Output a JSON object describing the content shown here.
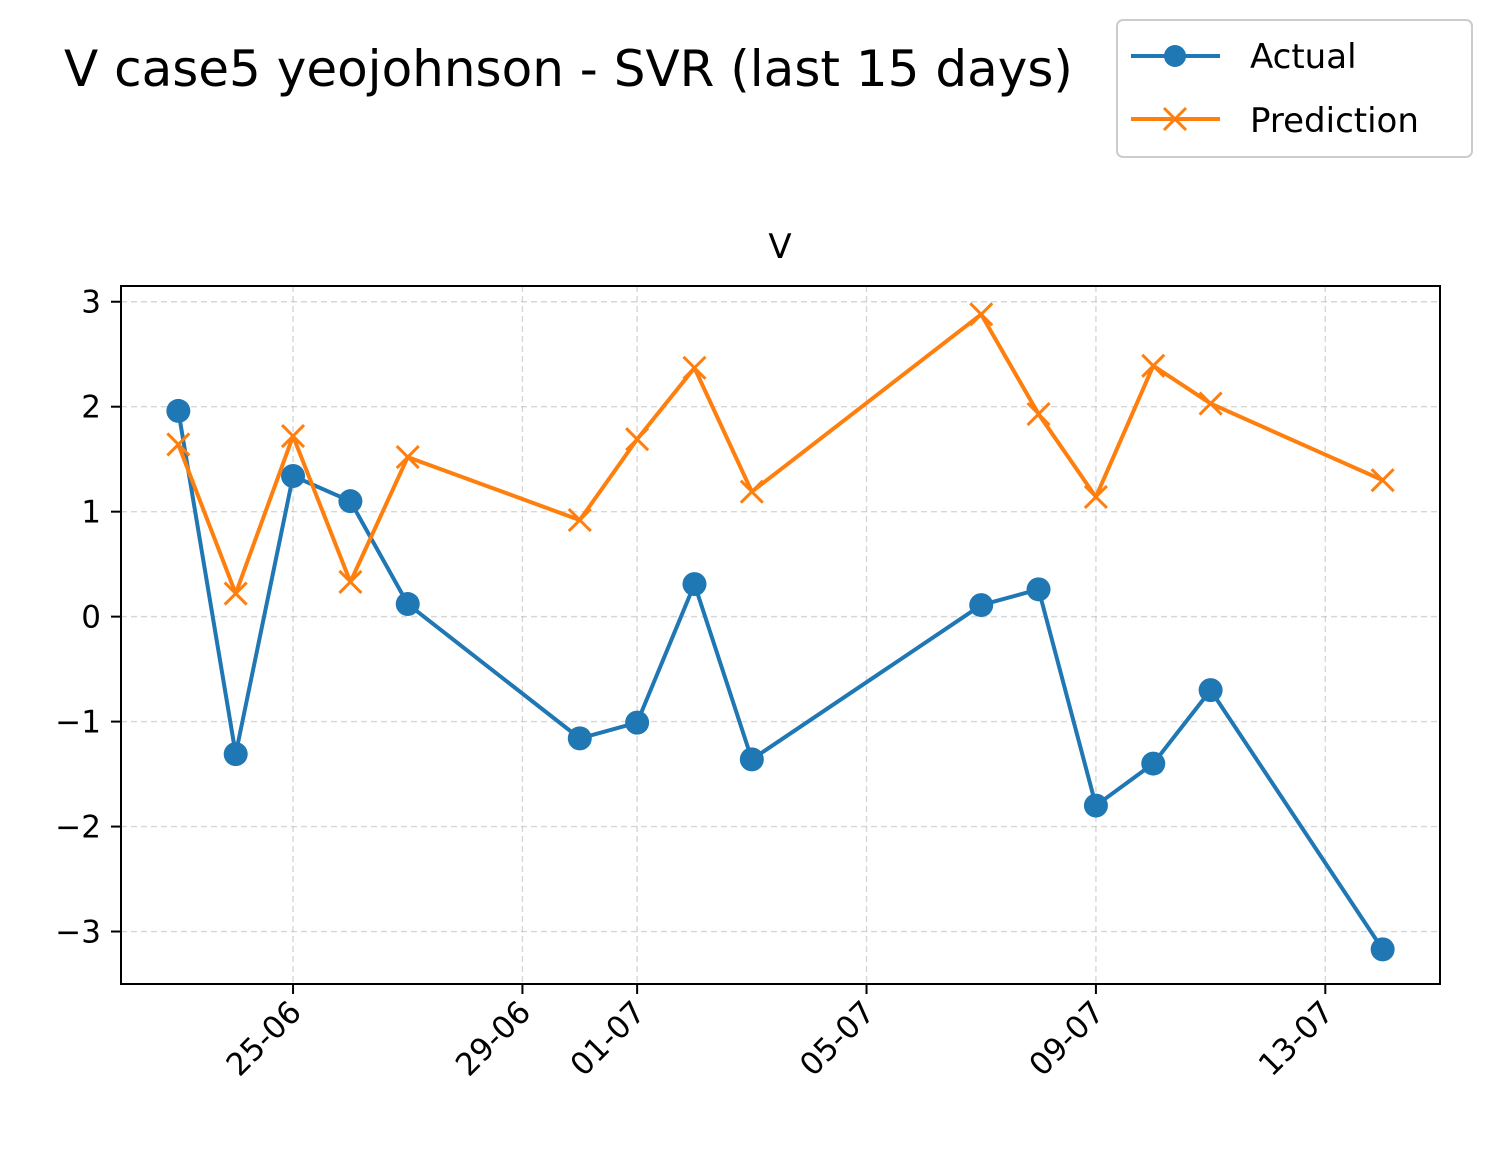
{
  "figure": {
    "suptitle": "V case5 yeojohnson - SVR (last 15 days)"
  },
  "legend": {
    "placement": "top-right",
    "entries": [
      {
        "label": "Actual",
        "color": "#1f77b4",
        "marker": "circle"
      },
      {
        "label": "Prediction",
        "color": "#ff7f0e",
        "marker": "x"
      }
    ]
  },
  "chart_data": {
    "type": "line",
    "title": "V",
    "xlabel": "",
    "ylabel": "",
    "x_type": "date",
    "x": [
      "2025-06-23",
      "2025-06-24",
      "2025-06-25",
      "2025-06-26",
      "2025-06-27",
      "2025-06-30",
      "2025-07-01",
      "2025-07-02",
      "2025-07-03",
      "2025-07-07",
      "2025-07-08",
      "2025-07-09",
      "2025-07-10",
      "2025-07-11",
      "2025-07-14"
    ],
    "xlim": [
      "2025-06-22T00:00",
      "2025-07-15T00:00"
    ],
    "ylim": [
      -3.5,
      3.15
    ],
    "x_ticks": [
      {
        "date": "2025-06-25",
        "label": "25-06"
      },
      {
        "date": "2025-06-29",
        "label": "29-06"
      },
      {
        "date": "2025-07-01",
        "label": "01-07"
      },
      {
        "date": "2025-07-05",
        "label": "05-07"
      },
      {
        "date": "2025-07-09",
        "label": "09-07"
      },
      {
        "date": "2025-07-13",
        "label": "13-07"
      }
    ],
    "y_ticks": [
      {
        "value": 3,
        "label": "3"
      },
      {
        "value": 2,
        "label": "2"
      },
      {
        "value": 1,
        "label": "1"
      },
      {
        "value": 0,
        "label": "0"
      },
      {
        "value": -1,
        "label": "−1"
      },
      {
        "value": -2,
        "label": "−2"
      },
      {
        "value": -3,
        "label": "−3"
      }
    ],
    "grid": true,
    "series": [
      {
        "name": "Actual",
        "color": "#1f77b4",
        "marker": "circle",
        "values": [
          1.96,
          -1.31,
          1.34,
          1.1,
          0.12,
          -1.16,
          -1.01,
          0.31,
          -1.36,
          0.11,
          0.26,
          -1.8,
          -1.4,
          -0.7,
          -3.17
        ]
      },
      {
        "name": "Prediction",
        "color": "#ff7f0e",
        "marker": "x",
        "values": [
          1.64,
          0.22,
          1.72,
          0.33,
          1.52,
          0.92,
          1.69,
          2.37,
          1.19,
          2.88,
          1.93,
          1.14,
          2.39,
          2.03,
          1.3
        ]
      }
    ]
  }
}
